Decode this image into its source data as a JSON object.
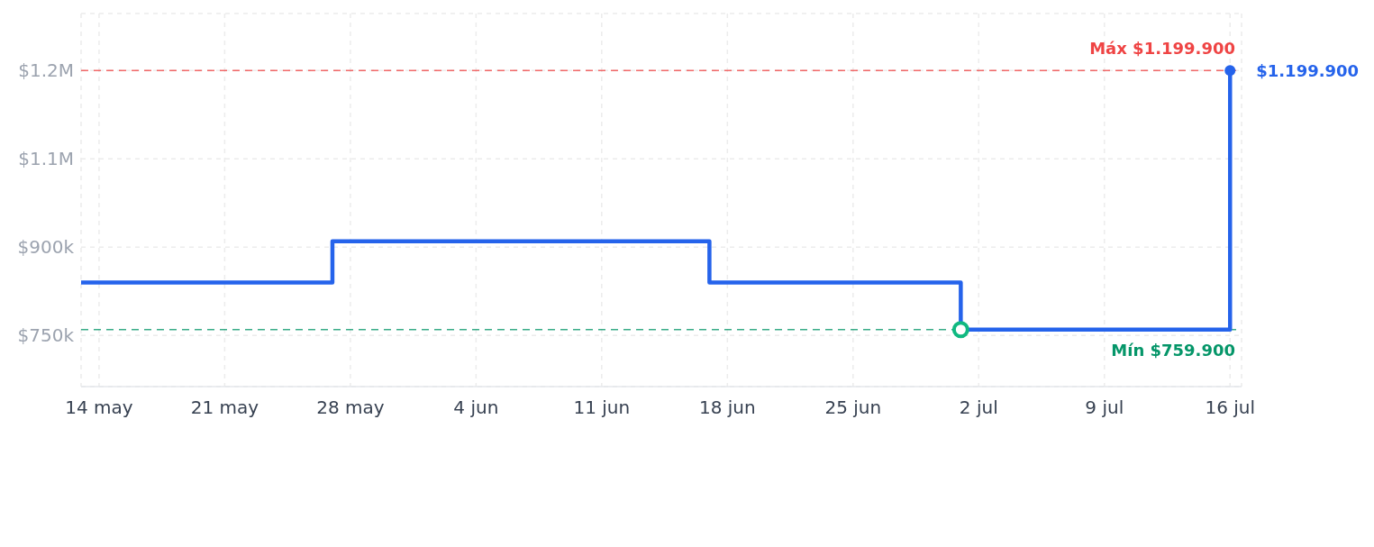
{
  "chart_data": {
    "type": "step",
    "x": [
      "--05-13",
      "--05-27",
      "--06-17",
      "--07-01",
      "--07-16"
    ],
    "series": [
      {
        "color": "#2563eb",
        "values": [
          840000,
          910000,
          840000,
          759900,
          1199900
        ]
      },
      {
        "type": "scatter",
        "x": [
          "--07-01"
        ],
        "values": [
          759900
        ],
        "color": "#10b981",
        "marker": "circle"
      }
    ],
    "xlim": [
      "--05-13",
      "--07-16T15:22"
    ],
    "xticks": [
      {
        "value": "--05-14",
        "label": "14 may"
      },
      {
        "value": "--05-21",
        "label": "21 may"
      },
      {
        "value": "--05-28",
        "label": "28 may"
      },
      {
        "value": "--06-04",
        "label": "4 jun"
      },
      {
        "value": "--06-11",
        "label": "11 jun"
      },
      {
        "value": "--06-18",
        "label": "18 jun"
      },
      {
        "value": "--06-25",
        "label": "25 jun"
      },
      {
        "value": "--07-02",
        "label": "2 jul"
      },
      {
        "value": "--07-09",
        "label": "9 jul"
      },
      {
        "value": "--07-16",
        "label": "16 jul"
      }
    ],
    "ylim": [
      663100,
      1296700
    ],
    "yticks": [
      {
        "value": 750000,
        "label": "$750k"
      },
      {
        "value": 900000,
        "label": "$900k"
      },
      {
        "value": 1050000,
        "label": "$1.1M"
      },
      {
        "value": 1200000,
        "label": "$1.2M"
      }
    ],
    "grid": true,
    "marker": "none",
    "line_style": "solid",
    "ref_lines": [
      {
        "axis": "y",
        "value": 1199900,
        "label": "Máx $1.199.900",
        "color": "#ef4444",
        "line_style": "dashed"
      },
      {
        "axis": "y",
        "value": 759900,
        "label": "Mín $759.900",
        "color": "#059669",
        "line_style": "dashed"
      }
    ],
    "annotations": [
      {
        "text": "$1.199.900",
        "x": "--07-16",
        "y": 1199900
      }
    ]
  }
}
